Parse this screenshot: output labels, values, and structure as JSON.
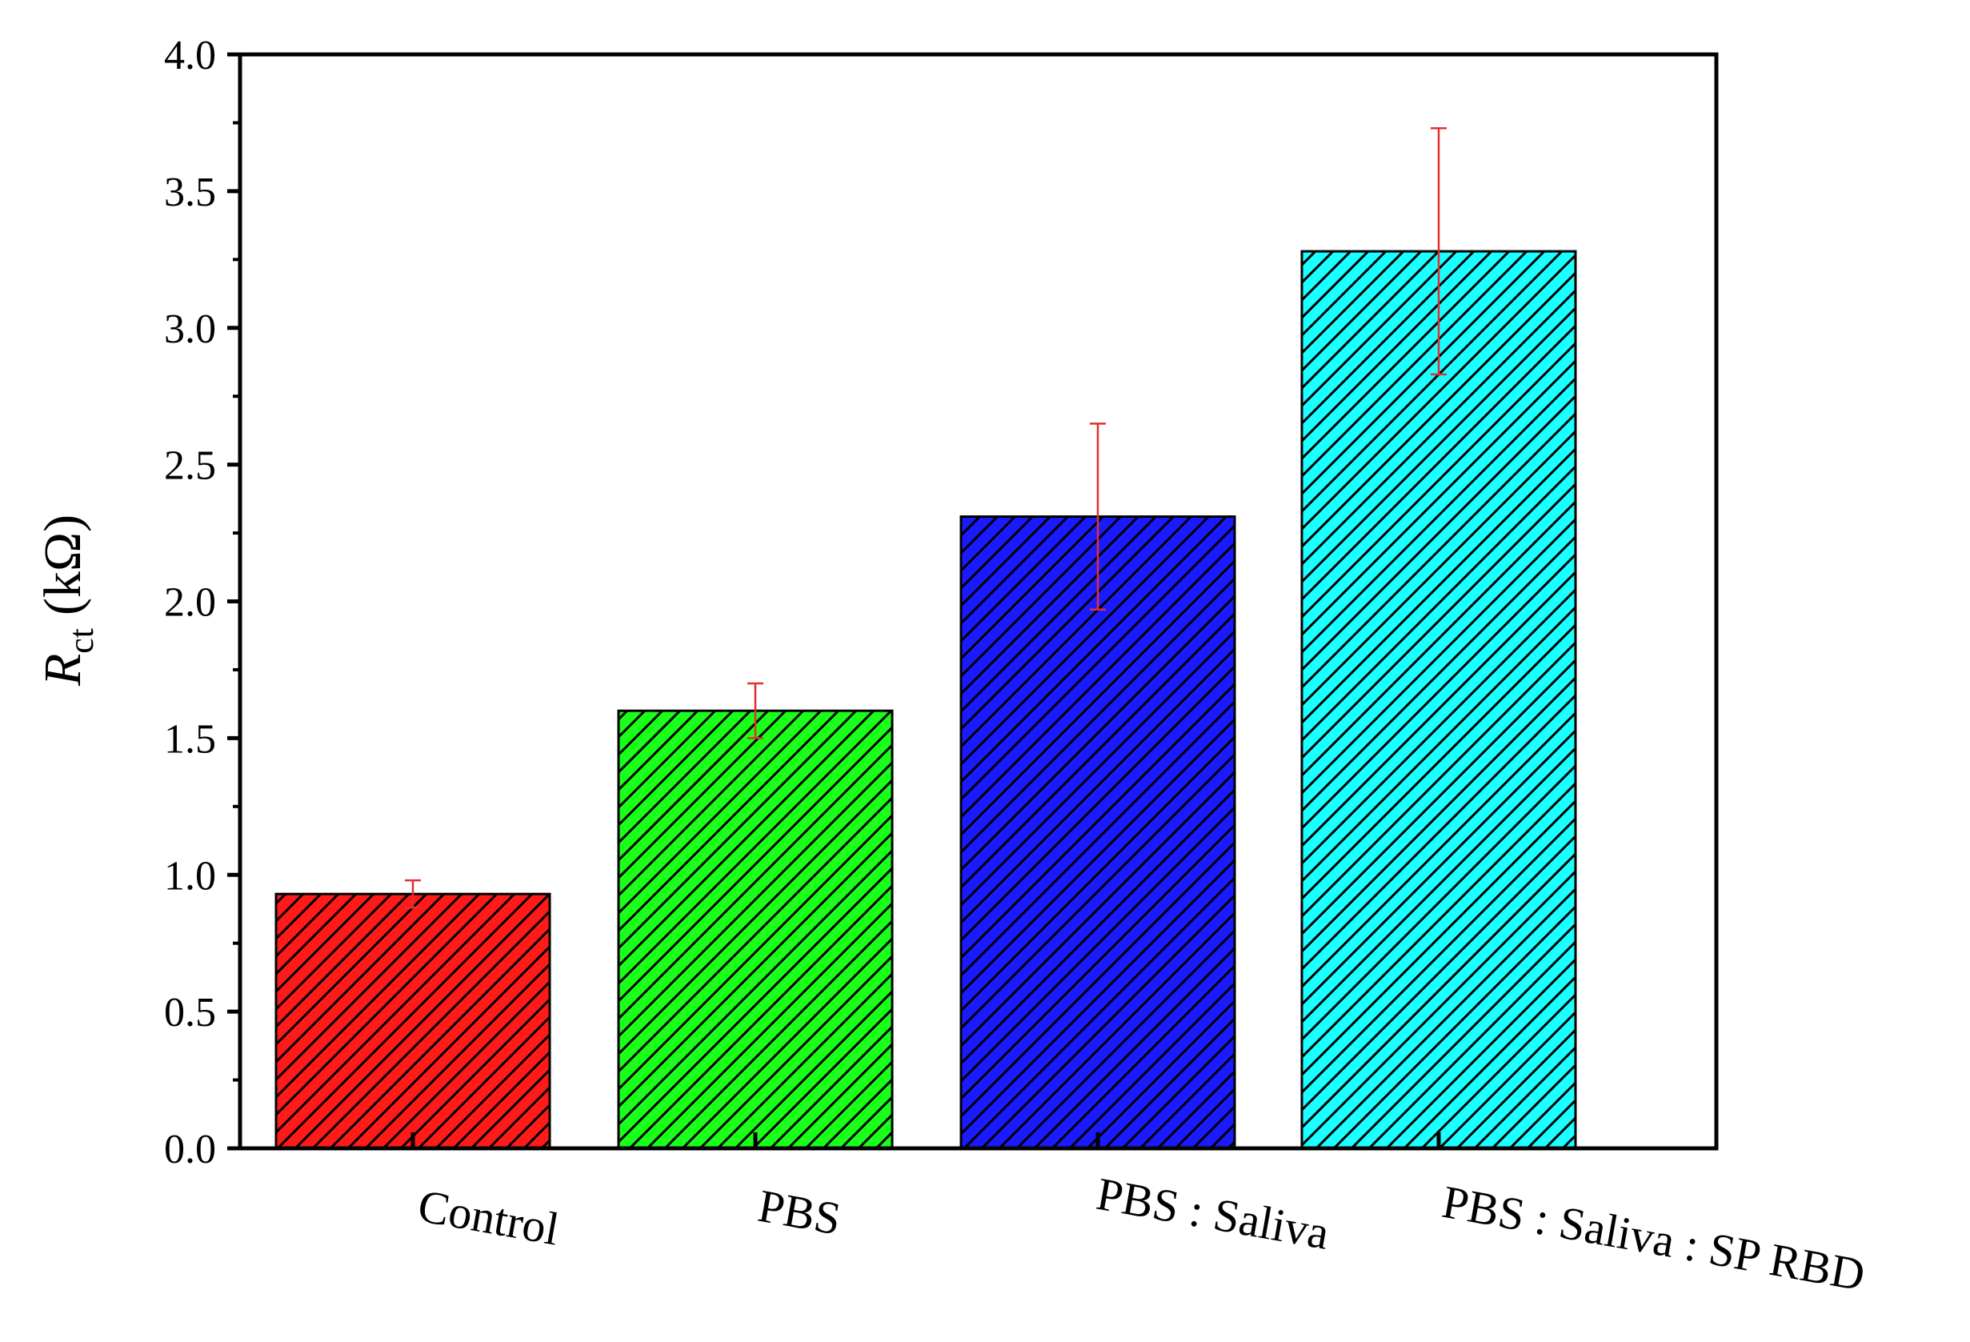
{
  "chart_data": {
    "type": "bar",
    "title": "",
    "xlabel": "",
    "ylabel": {
      "main": "R",
      "subscript": "ct",
      "unit": "(kΩ)"
    },
    "ylim": [
      0,
      4.0
    ],
    "yticks": [
      "0.0",
      "0.5",
      "1.0",
      "1.5",
      "2.0",
      "2.5",
      "3.0",
      "3.5",
      "4.0"
    ],
    "categories": [
      "Control",
      "PBS",
      "PBS : Saliva",
      "PBS : Saliva : SP RBD"
    ],
    "values": [
      0.93,
      1.6,
      2.31,
      3.28
    ],
    "errors": [
      0.05,
      0.1,
      0.34,
      0.45
    ],
    "colors": [
      "#ff1a1a",
      "#1aff1a",
      "#1a1aff",
      "#1affff"
    ],
    "hatch": "diagonal",
    "error_bar_color": "#e03030"
  }
}
